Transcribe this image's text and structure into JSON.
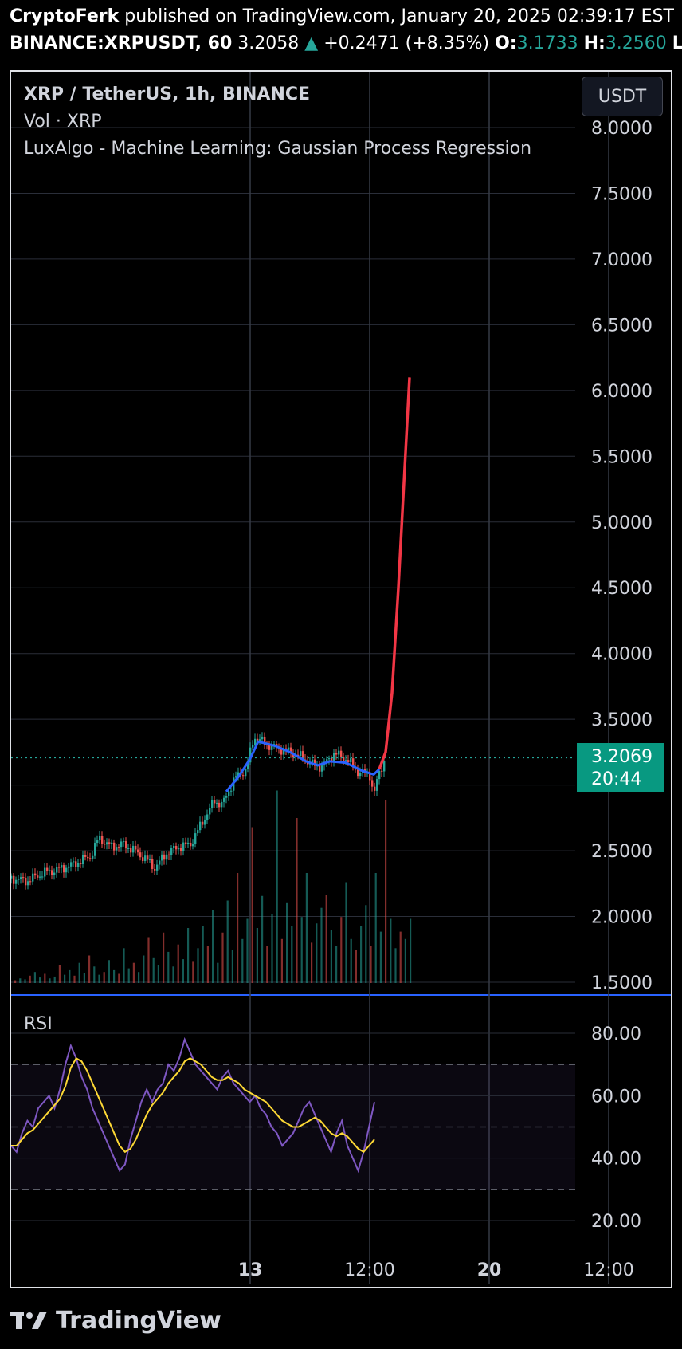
{
  "header": {
    "publisher": "CryptoFerk",
    "published_text": "published on TradingView.com, January 20, 2025 02:39:17 EST",
    "symbol": "BINANCE:XRPUSDT, 60",
    "last_price": "3.2058",
    "change": "+0.2471 (+8.35%)",
    "open_label": "O:",
    "open_value": "3.1733",
    "high_label": "H:",
    "high_value": "3.2560",
    "low_label": "L"
  },
  "legend": {
    "title": "XRP / TetherUS, 1h, BINANCE",
    "volume": "Vol · XRP",
    "indicator": "LuxAlgo - Machine Learning: Gaussian Process Regression"
  },
  "currency_button": "USDT",
  "price_tag": {
    "price": "3.2069",
    "countdown": "20:44"
  },
  "rsi_label": "RSI",
  "footer": {
    "brand": "TradingView"
  },
  "colors": {
    "up": "#26a69a",
    "down": "#ef5350",
    "gpr_fit": "#2962ff",
    "gpr_forecast": "#f23645",
    "rsi": "#7e57c2",
    "rsi_ma": "#fdd835",
    "price_line": "#26a69a"
  },
  "chart_data": [
    {
      "type": "candlestick",
      "title": "XRP / TetherUS, 1h, BINANCE",
      "y_ticks": [
        1.5,
        2.0,
        2.5,
        3.0,
        3.5,
        4.0,
        4.5,
        5.0,
        5.5,
        6.0,
        6.5,
        7.0,
        7.5,
        8.0
      ],
      "y_tick_labels": [
        "1.5000",
        "2.0000",
        "2.5000",
        "",
        "3.5000",
        "4.0000",
        "4.5000",
        "5.0000",
        "5.5000",
        "6.0000",
        "6.5000",
        "7.0000",
        "7.5000",
        "8.0000"
      ],
      "ylim": [
        1.4,
        8.1
      ],
      "x_tick_labels": [
        "13",
        "12:00",
        "20",
        "12:00"
      ],
      "current_price": 3.2069,
      "price_path": [
        [
          0,
          2.29
        ],
        [
          20,
          2.27
        ],
        [
          40,
          2.33
        ],
        [
          60,
          2.36
        ],
        [
          80,
          2.4
        ],
        [
          100,
          2.46
        ],
        [
          110,
          2.6
        ],
        [
          125,
          2.53
        ],
        [
          140,
          2.55
        ],
        [
          155,
          2.5
        ],
        [
          170,
          2.43
        ],
        [
          180,
          2.37
        ],
        [
          195,
          2.48
        ],
        [
          210,
          2.53
        ],
        [
          225,
          2.55
        ],
        [
          240,
          2.72
        ],
        [
          255,
          2.88
        ],
        [
          265,
          2.85
        ],
        [
          280,
          3.05
        ],
        [
          295,
          3.12
        ],
        [
          305,
          3.37
        ],
        [
          320,
          3.31
        ],
        [
          335,
          3.28
        ],
        [
          350,
          3.25
        ],
        [
          365,
          3.21
        ],
        [
          380,
          3.15
        ],
        [
          390,
          3.14
        ],
        [
          405,
          3.24
        ],
        [
          420,
          3.2
        ],
        [
          435,
          3.1
        ],
        [
          450,
          3.08
        ],
        [
          455,
          2.92
        ],
        [
          462,
          3.1
        ],
        [
          470,
          3.21
        ]
      ],
      "gpr_fit": [
        [
          270,
          2.95
        ],
        [
          285,
          3.06
        ],
        [
          300,
          3.2
        ],
        [
          310,
          3.33
        ],
        [
          330,
          3.3
        ],
        [
          350,
          3.25
        ],
        [
          370,
          3.18
        ],
        [
          385,
          3.15
        ],
        [
          400,
          3.18
        ],
        [
          420,
          3.17
        ],
        [
          440,
          3.11
        ],
        [
          455,
          3.08
        ],
        [
          462,
          3.12
        ]
      ],
      "gpr_forecast": [
        [
          462,
          3.12
        ],
        [
          470,
          3.25
        ],
        [
          478,
          3.7
        ],
        [
          486,
          4.5
        ],
        [
          493,
          5.3
        ],
        [
          500,
          6.1
        ]
      ],
      "volume_bars": [
        3,
        5,
        4,
        8,
        12,
        6,
        10,
        5,
        7,
        20,
        9,
        14,
        8,
        22,
        11,
        30,
        18,
        9,
        12,
        25,
        14,
        10,
        38,
        16,
        22,
        12,
        30,
        50,
        28,
        20,
        55,
        34,
        18,
        42,
        26,
        60,
        24,
        38,
        62,
        40,
        80,
        22,
        55,
        90,
        36,
        120,
        48,
        70,
        170,
        60,
        95,
        40,
        75,
        210,
        48,
        88,
        62,
        180,
        72,
        120,
        44,
        65,
        82,
        96,
        58,
        40,
        72,
        110,
        48,
        36,
        62,
        85,
        40,
        120,
        56,
        200,
        70,
        38,
        56,
        48,
        70
      ],
      "x_tick_positions": [
        150,
        300,
        450,
        600
      ]
    },
    {
      "type": "line",
      "title": "RSI",
      "y_ticks": [
        20,
        40,
        60,
        80
      ],
      "y_tick_labels": [
        "20.00",
        "40.00",
        "60.00",
        "80.00"
      ],
      "ylim": [
        14,
        86
      ],
      "bands": [
        30,
        50,
        70
      ],
      "series": [
        {
          "values": [
            44,
            42,
            48,
            52,
            50,
            56,
            58,
            60,
            56,
            62,
            70,
            76,
            72,
            66,
            62,
            56,
            52,
            48,
            44,
            40,
            36,
            38,
            46,
            52,
            58,
            62,
            58,
            62,
            64,
            70,
            68,
            72,
            78,
            74,
            70,
            68,
            66,
            64,
            62,
            66,
            68,
            64,
            62,
            60,
            58,
            60,
            56,
            54,
            50,
            48,
            44,
            46,
            48,
            52,
            56,
            58,
            54,
            50,
            46,
            42,
            48,
            52,
            44,
            40,
            36,
            42,
            50,
            58
          ]
        },
        {
          "values": [
            44,
            44,
            46,
            48,
            49,
            51,
            53,
            55,
            57,
            59,
            63,
            69,
            72,
            71,
            68,
            64,
            60,
            56,
            52,
            48,
            44,
            42,
            43,
            46,
            50,
            54,
            57,
            59,
            61,
            64,
            66,
            68,
            71,
            72,
            71,
            70,
            68,
            66,
            65,
            65,
            66,
            65,
            64,
            62,
            61,
            60,
            59,
            58,
            56,
            54,
            52,
            51,
            50,
            50,
            51,
            52,
            53,
            52,
            50,
            48,
            47,
            48,
            47,
            45,
            43,
            42,
            44,
            46
          ]
        }
      ]
    }
  ]
}
